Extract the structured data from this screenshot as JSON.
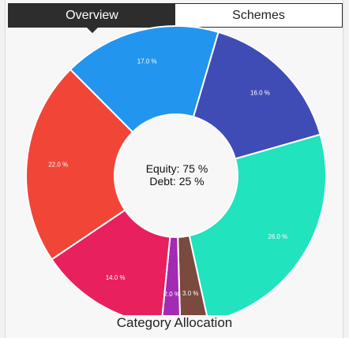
{
  "tabs": [
    {
      "label": "Overview",
      "active": true
    },
    {
      "label": "Schemes",
      "active": false
    }
  ],
  "center": {
    "equity": "Equity: 75 %",
    "debt": "Debt: 25 %"
  },
  "caption": "Category Allocation",
  "chart_data": {
    "type": "pie",
    "title": "",
    "slices": [
      {
        "label": "26.0 %",
        "value": 26.0,
        "color": "#21e3bd"
      },
      {
        "label": "3.0 %",
        "value": 3.0,
        "color": "#7a4a3e"
      },
      {
        "label": "2.0 %",
        "value": 2.0,
        "color": "#a32ab2"
      },
      {
        "label": "14.0 %",
        "value": 14.0,
        "color": "#e8205e"
      },
      {
        "label": "22.0 %",
        "value": 22.0,
        "color": "#f14537"
      },
      {
        "label": "17.0 %",
        "value": 17.0,
        "color": "#2295ef"
      },
      {
        "label": "16.0 %",
        "value": 16.0,
        "color": "#3f4cb6"
      }
    ]
  }
}
